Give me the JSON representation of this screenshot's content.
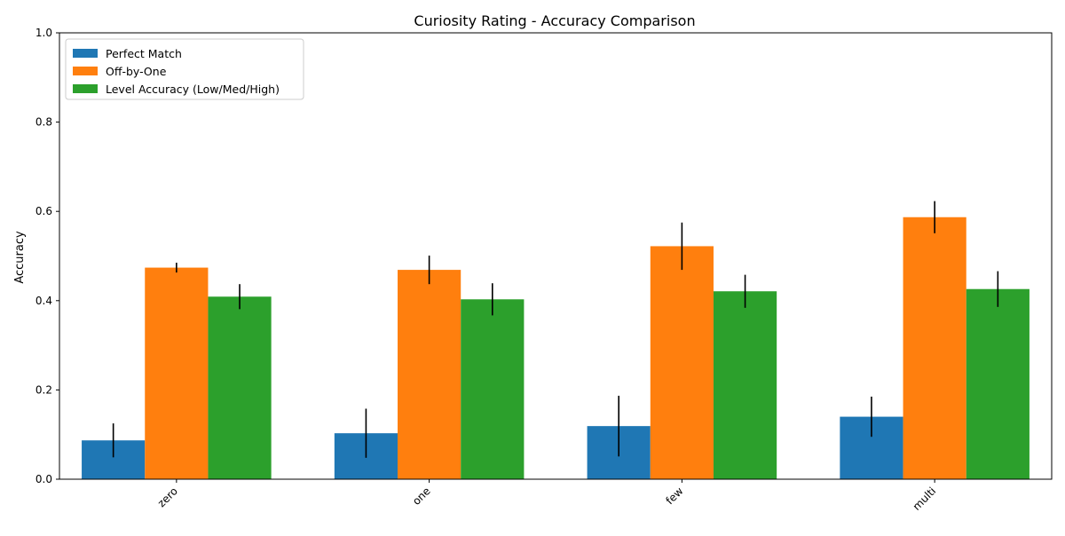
{
  "chart_data": {
    "type": "bar",
    "title": "Curiosity Rating - Accuracy Comparison",
    "xlabel": "",
    "ylabel": "Accuracy",
    "ylim": [
      0,
      1.0
    ],
    "yticks": [
      "0.0",
      "0.2",
      "0.4",
      "0.6",
      "0.8",
      "1.0"
    ],
    "categories": [
      "zero",
      "one",
      "few",
      "multi"
    ],
    "series": [
      {
        "name": "Perfect Match",
        "color": "#1f77b4",
        "values": [
          0.087,
          0.103,
          0.119,
          0.14
        ],
        "errors": [
          0.038,
          0.055,
          0.068,
          0.045
        ]
      },
      {
        "name": "Off-by-One",
        "color": "#ff7f0e",
        "values": [
          0.474,
          0.469,
          0.522,
          0.587
        ],
        "errors": [
          0.011,
          0.032,
          0.053,
          0.036
        ]
      },
      {
        "name": "Level Accuracy (Low/Med/High)",
        "color": "#2ca02c",
        "values": [
          0.409,
          0.403,
          0.421,
          0.426
        ],
        "errors": [
          0.028,
          0.036,
          0.037,
          0.04
        ]
      }
    ],
    "grid": false,
    "legend_position": "top-left",
    "error_bars": true
  }
}
